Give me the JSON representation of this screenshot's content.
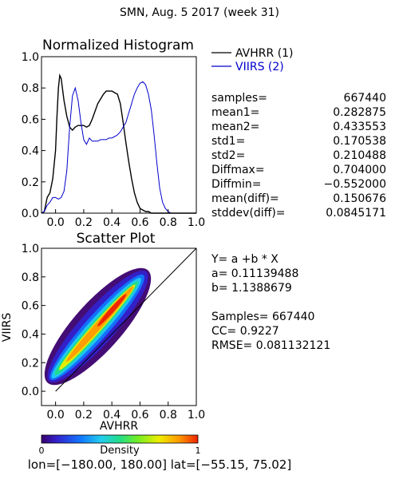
{
  "header": {
    "title": "SMN,  Aug. 5 2017 (week 31)"
  },
  "chart_data": [
    {
      "type": "line",
      "title": "Normalized Histogram",
      "xlim": [
        -0.1,
        1.0
      ],
      "ylim": [
        0.0,
        1.0
      ],
      "xticks": [
        "0.0",
        "0.2",
        "0.4",
        "0.6",
        "0.8",
        "1.0"
      ],
      "yticks": [
        "0.0",
        "0.2",
        "0.4",
        "0.6",
        "0.8",
        "1.0"
      ],
      "legend": {
        "position": "right-outside",
        "entries": [
          "AVHRR (1)",
          "VIIRS (2)"
        ]
      },
      "series": [
        {
          "name": "AVHRR (1)",
          "color": "#000000",
          "x": [
            -0.1,
            -0.08,
            -0.06,
            -0.04,
            -0.02,
            0.0,
            0.01,
            0.02,
            0.03,
            0.04,
            0.06,
            0.08,
            0.1,
            0.12,
            0.14,
            0.16,
            0.18,
            0.2,
            0.22,
            0.24,
            0.26,
            0.28,
            0.3,
            0.32,
            0.34,
            0.36,
            0.38,
            0.4,
            0.42,
            0.44,
            0.46,
            0.48,
            0.5,
            0.52,
            0.54,
            0.56,
            0.58,
            0.6,
            0.62,
            0.64,
            0.66,
            0.68,
            0.7,
            1.0
          ],
          "y": [
            0.0,
            0.01,
            0.1,
            0.13,
            0.22,
            0.4,
            0.62,
            0.8,
            0.88,
            0.86,
            0.72,
            0.62,
            0.55,
            0.53,
            0.55,
            0.56,
            0.56,
            0.56,
            0.55,
            0.56,
            0.6,
            0.65,
            0.7,
            0.73,
            0.76,
            0.78,
            0.78,
            0.78,
            0.77,
            0.76,
            0.7,
            0.58,
            0.45,
            0.33,
            0.22,
            0.13,
            0.07,
            0.03,
            0.02,
            0.01,
            0.01,
            0.0,
            0.0,
            0.0
          ]
        },
        {
          "name": "VIIRS (2)",
          "color": "#0000cc",
          "x": [
            -0.1,
            -0.08,
            -0.06,
            -0.04,
            -0.02,
            0.0,
            0.02,
            0.04,
            0.06,
            0.08,
            0.1,
            0.12,
            0.14,
            0.16,
            0.18,
            0.2,
            0.22,
            0.24,
            0.26,
            0.28,
            0.3,
            0.32,
            0.34,
            0.36,
            0.38,
            0.4,
            0.42,
            0.44,
            0.46,
            0.48,
            0.5,
            0.52,
            0.54,
            0.56,
            0.58,
            0.6,
            0.62,
            0.64,
            0.66,
            0.68,
            0.7,
            0.72,
            0.74,
            0.76,
            0.78,
            0.8,
            0.82,
            1.0
          ],
          "y": [
            0.0,
            0.01,
            0.05,
            0.07,
            0.1,
            0.1,
            0.09,
            0.1,
            0.14,
            0.27,
            0.55,
            0.75,
            0.8,
            0.72,
            0.58,
            0.47,
            0.44,
            0.48,
            0.46,
            0.46,
            0.46,
            0.47,
            0.47,
            0.47,
            0.48,
            0.48,
            0.49,
            0.5,
            0.52,
            0.55,
            0.58,
            0.64,
            0.7,
            0.76,
            0.8,
            0.83,
            0.84,
            0.82,
            0.76,
            0.66,
            0.5,
            0.32,
            0.16,
            0.07,
            0.03,
            0.01,
            0.0,
            0.0
          ]
        }
      ]
    },
    {
      "type": "scatter",
      "title": "Scatter Plot",
      "xlabel": "AVHRR",
      "ylabel": "VIIRS",
      "xlim": [
        -0.1,
        1.0
      ],
      "ylim": [
        -0.1,
        1.0
      ],
      "xticks": [
        "0.0",
        "0.2",
        "0.4",
        "0.6",
        "0.8",
        "1.0"
      ],
      "yticks": [
        "0.0",
        "0.2",
        "0.4",
        "0.6",
        "0.8",
        "1.0"
      ],
      "one_to_one_line": true,
      "fit": {
        "a": 0.11139488,
        "b": 1.1388679
      },
      "density_colorbar": {
        "label": "Density",
        "min_label": "0",
        "max_label": "1"
      }
    }
  ],
  "stats": [
    {
      "label": "samples=",
      "value": "667440"
    },
    {
      "label": "mean1=",
      "value": "0.282875"
    },
    {
      "label": "mean2=",
      "value": "0.433553"
    },
    {
      "label": "std1=",
      "value": "0.170538"
    },
    {
      "label": "std2=",
      "value": "0.210488"
    },
    {
      "label": "Diffmax=",
      "value": "0.704000"
    },
    {
      "label": "Diffmin=",
      "value": "−0.552000"
    },
    {
      "label": "mean(diff)=",
      "value": "0.150676"
    },
    {
      "label": "stddev(diff)=",
      "value": "0.0845171"
    }
  ],
  "regression": [
    "Y= a +b * X",
    "a= 0.11139488",
    "b= 1.1388679",
    "",
    "Samples= 667440",
    "CC=  0.9227",
    "RMSE= 0.081132121"
  ],
  "footer": {
    "range": "lon=[−180.00, 180.00] lat=[−55.15, 75.02]"
  }
}
